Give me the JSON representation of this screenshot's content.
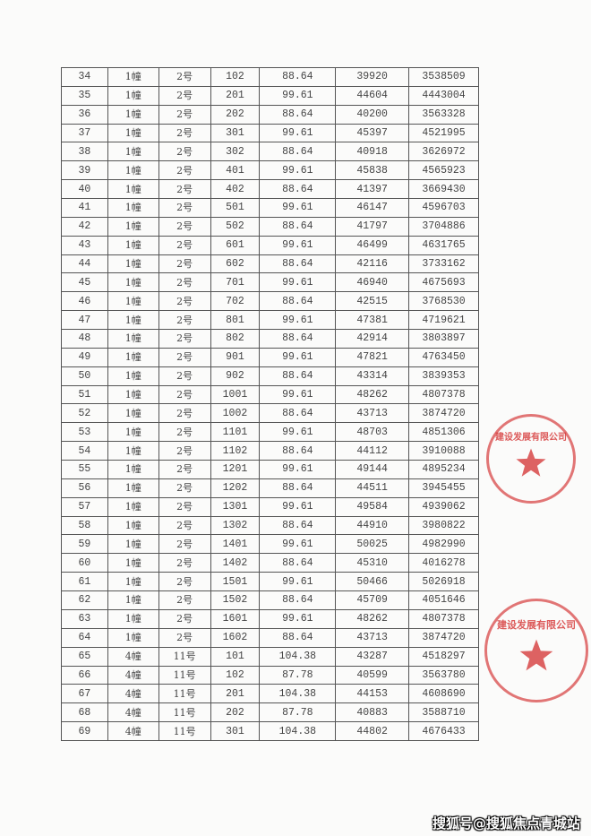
{
  "table": {
    "rows": [
      [
        "34",
        "1幢",
        "2号",
        "102",
        "88.64",
        "39920",
        "3538509"
      ],
      [
        "35",
        "1幢",
        "2号",
        "201",
        "99.61",
        "44604",
        "4443004"
      ],
      [
        "36",
        "1幢",
        "2号",
        "202",
        "88.64",
        "40200",
        "3563328"
      ],
      [
        "37",
        "1幢",
        "2号",
        "301",
        "99.61",
        "45397",
        "4521995"
      ],
      [
        "38",
        "1幢",
        "2号",
        "302",
        "88.64",
        "40918",
        "3626972"
      ],
      [
        "39",
        "1幢",
        "2号",
        "401",
        "99.61",
        "45838",
        "4565923"
      ],
      [
        "40",
        "1幢",
        "2号",
        "402",
        "88.64",
        "41397",
        "3669430"
      ],
      [
        "41",
        "1幢",
        "2号",
        "501",
        "99.61",
        "46147",
        "4596703"
      ],
      [
        "42",
        "1幢",
        "2号",
        "502",
        "88.64",
        "41797",
        "3704886"
      ],
      [
        "43",
        "1幢",
        "2号",
        "601",
        "99.61",
        "46499",
        "4631765"
      ],
      [
        "44",
        "1幢",
        "2号",
        "602",
        "88.64",
        "42116",
        "3733162"
      ],
      [
        "45",
        "1幢",
        "2号",
        "701",
        "99.61",
        "46940",
        "4675693"
      ],
      [
        "46",
        "1幢",
        "2号",
        "702",
        "88.64",
        "42515",
        "3768530"
      ],
      [
        "47",
        "1幢",
        "2号",
        "801",
        "99.61",
        "47381",
        "4719621"
      ],
      [
        "48",
        "1幢",
        "2号",
        "802",
        "88.64",
        "42914",
        "3803897"
      ],
      [
        "49",
        "1幢",
        "2号",
        "901",
        "99.61",
        "47821",
        "4763450"
      ],
      [
        "50",
        "1幢",
        "2号",
        "902",
        "88.64",
        "43314",
        "3839353"
      ],
      [
        "51",
        "1幢",
        "2号",
        "1001",
        "99.61",
        "48262",
        "4807378"
      ],
      [
        "52",
        "1幢",
        "2号",
        "1002",
        "88.64",
        "43713",
        "3874720"
      ],
      [
        "53",
        "1幢",
        "2号",
        "1101",
        "99.61",
        "48703",
        "4851306"
      ],
      [
        "54",
        "1幢",
        "2号",
        "1102",
        "88.64",
        "44112",
        "3910088"
      ],
      [
        "55",
        "1幢",
        "2号",
        "1201",
        "99.61",
        "49144",
        "4895234"
      ],
      [
        "56",
        "1幢",
        "2号",
        "1202",
        "88.64",
        "44511",
        "3945455"
      ],
      [
        "57",
        "1幢",
        "2号",
        "1301",
        "99.61",
        "49584",
        "4939062"
      ],
      [
        "58",
        "1幢",
        "2号",
        "1302",
        "88.64",
        "44910",
        "3980822"
      ],
      [
        "59",
        "1幢",
        "2号",
        "1401",
        "99.61",
        "50025",
        "4982990"
      ],
      [
        "60",
        "1幢",
        "2号",
        "1402",
        "88.64",
        "45310",
        "4016278"
      ],
      [
        "61",
        "1幢",
        "2号",
        "1501",
        "99.61",
        "50466",
        "5026918"
      ],
      [
        "62",
        "1幢",
        "2号",
        "1502",
        "88.64",
        "45709",
        "4051646"
      ],
      [
        "63",
        "1幢",
        "2号",
        "1601",
        "99.61",
        "48262",
        "4807378"
      ],
      [
        "64",
        "1幢",
        "2号",
        "1602",
        "88.64",
        "43713",
        "3874720"
      ],
      [
        "65",
        "4幢",
        "11号",
        "101",
        "104.38",
        "43287",
        "4518297"
      ],
      [
        "66",
        "4幢",
        "11号",
        "102",
        "87.78",
        "40599",
        "3563780"
      ],
      [
        "67",
        "4幢",
        "11号",
        "201",
        "104.38",
        "44153",
        "4608690"
      ],
      [
        "68",
        "4幢",
        "11号",
        "202",
        "87.78",
        "40883",
        "3588710"
      ],
      [
        "69",
        "4幢",
        "11号",
        "301",
        "104.38",
        "44802",
        "4676433"
      ]
    ]
  },
  "stamps": {
    "color": "#d63c3c",
    "stamp1_text": "建设发展有限公司",
    "stamp2_text": "建设发展有限公司"
  },
  "watermark": "搜狐号@搜狐焦点青城站"
}
